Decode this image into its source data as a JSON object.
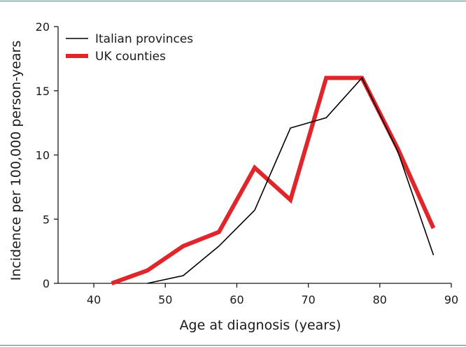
{
  "frame": {
    "rule_color": "#3a8a8a"
  },
  "chart_data": {
    "type": "line",
    "xlabel": "Age at diagnosis (years)",
    "ylabel": "Incidence per 100,000 person-years",
    "xlim": [
      35,
      90
    ],
    "ylim": [
      0,
      20
    ],
    "x_ticks": [
      40,
      50,
      60,
      70,
      80,
      90
    ],
    "y_ticks": [
      0,
      5,
      10,
      15,
      20
    ],
    "grid": false,
    "legend_position": "top-left",
    "series": [
      {
        "name": "Italian provinces",
        "color": "#000000",
        "style": "thin",
        "x": [
          47.5,
          52.5,
          57.5,
          62.5,
          67.5,
          72.5,
          77.5,
          82.5,
          87.5
        ],
        "y": [
          0,
          0.6,
          2.9,
          5.7,
          12.1,
          12.9,
          16.0,
          10.3,
          2.2
        ]
      },
      {
        "name": "UK counties",
        "color": "#e0262b",
        "style": "thick",
        "x": [
          42.5,
          47.5,
          52.5,
          57.5,
          62.5,
          67.5,
          72.5,
          77.5,
          82.5,
          87.5
        ],
        "y": [
          0,
          1.0,
          2.9,
          4.0,
          9.0,
          6.5,
          16.0,
          16.0,
          10.5,
          4.3
        ]
      }
    ]
  }
}
